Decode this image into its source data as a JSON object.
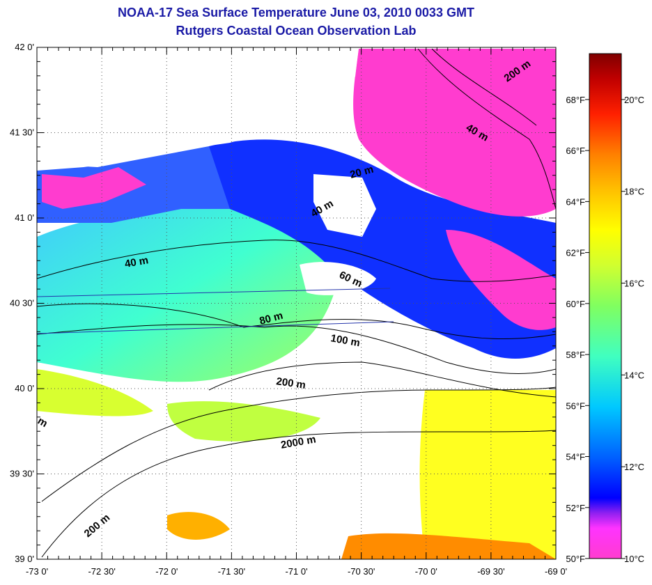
{
  "title": "NOAA-17 Sea Surface Temperature June 03, 2010 0033 GMT",
  "subtitle": "Rutgers Coastal Ocean Observation Lab",
  "map": {
    "lon_range": [
      -73.0,
      -69.0
    ],
    "lat_range": [
      39.0,
      42.0
    ],
    "lon_labels": [
      "-73 0'",
      "-72 30'",
      "-72 0'",
      "-71 30'",
      "-71 0'",
      "-70 30'",
      "-70 0'",
      "-69 30'",
      "-69 0'"
    ],
    "lat_labels": [
      "42 0'",
      "41 30'",
      "41 0'",
      "40 30'",
      "40 0'",
      "39 30'",
      "39 0'"
    ],
    "grid": "dotted",
    "contour_labels": [
      "200 m",
      "40 m",
      "20 m",
      "40 m",
      "40 m",
      "60 m",
      "80 m",
      "100 m",
      "200 m",
      "2000 m",
      "200 m",
      "m"
    ]
  },
  "colorbar": {
    "fahrenheit_labels": [
      "68°F",
      "66°F",
      "64°F",
      "62°F",
      "60°F",
      "58°F",
      "56°F",
      "54°F",
      "52°F",
      "50°F"
    ],
    "celsius_labels": [
      "20°C",
      "18°C",
      "16°C",
      "14°C",
      "12°C",
      "10°C"
    ],
    "range_c": [
      10,
      21
    ],
    "colors": [
      "#ff3ccf",
      "#ff33ff",
      "#a020f0",
      "#0000ff",
      "#0066ff",
      "#00ccff",
      "#33ffcc",
      "#66ff66",
      "#ccff33",
      "#ffff00",
      "#ffcc00",
      "#ff9900",
      "#ff5500",
      "#ff0000",
      "#cc0000",
      "#800000"
    ]
  }
}
